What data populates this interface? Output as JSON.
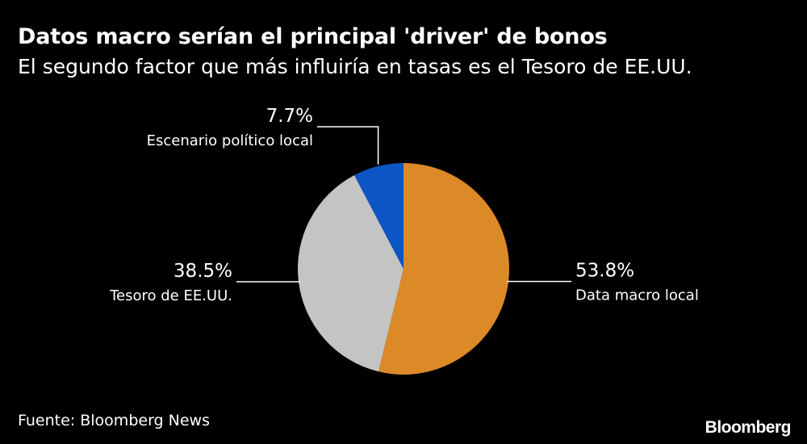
{
  "title": "Datos macro serían el principal 'driver' de bonos",
  "subtitle": "El segundo factor que más influiría en tasas es el Tesoro de EE.UU.",
  "source": "Fuente: Bloomberg News",
  "brand": "Bloomberg",
  "chart_data": {
    "type": "pie",
    "title": "",
    "slices": [
      {
        "label": "Data macro local",
        "value": 53.8,
        "value_label": "53.8%",
        "color": "#dc8a28"
      },
      {
        "label": "Tesoro de EE.UU.",
        "value": 38.5,
        "value_label": "38.5%",
        "color": "#c4c4c4"
      },
      {
        "label": "Escenario político local",
        "value": 7.7,
        "value_label": "7.7%",
        "color": "#0c55c4"
      }
    ]
  }
}
